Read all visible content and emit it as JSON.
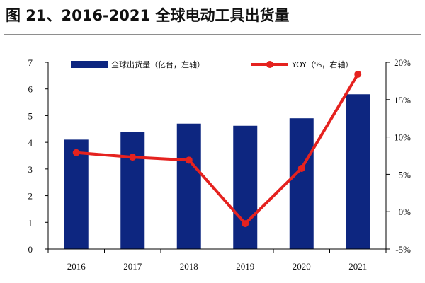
{
  "title": "图 21、2016-2021 全球电动工具出货量",
  "chart_data": {
    "type": "bar",
    "categories": [
      "2016",
      "2017",
      "2018",
      "2019",
      "2020",
      "2021"
    ],
    "series": [
      {
        "name": "全球出货量（亿台，左轴）",
        "type": "bar",
        "axis": "left",
        "values": [
          4.1,
          4.4,
          4.7,
          4.62,
          4.9,
          5.8
        ],
        "color": "#0d2680"
      },
      {
        "name": "YOY（%，右轴）",
        "type": "line",
        "axis": "right",
        "values": [
          7.9,
          7.3,
          6.9,
          -1.6,
          5.8,
          18.4
        ],
        "color": "#e5221f"
      }
    ],
    "y_left": {
      "ylim": [
        0,
        7
      ],
      "ticks": [
        "0",
        "1",
        "2",
        "3",
        "4",
        "5",
        "6",
        "7"
      ]
    },
    "y_right": {
      "ylim": [
        -5,
        20
      ],
      "ticks": [
        "-5%",
        "0%",
        "5%",
        "10%",
        "15%",
        "20%"
      ]
    },
    "legend": "top",
    "grid": false
  }
}
